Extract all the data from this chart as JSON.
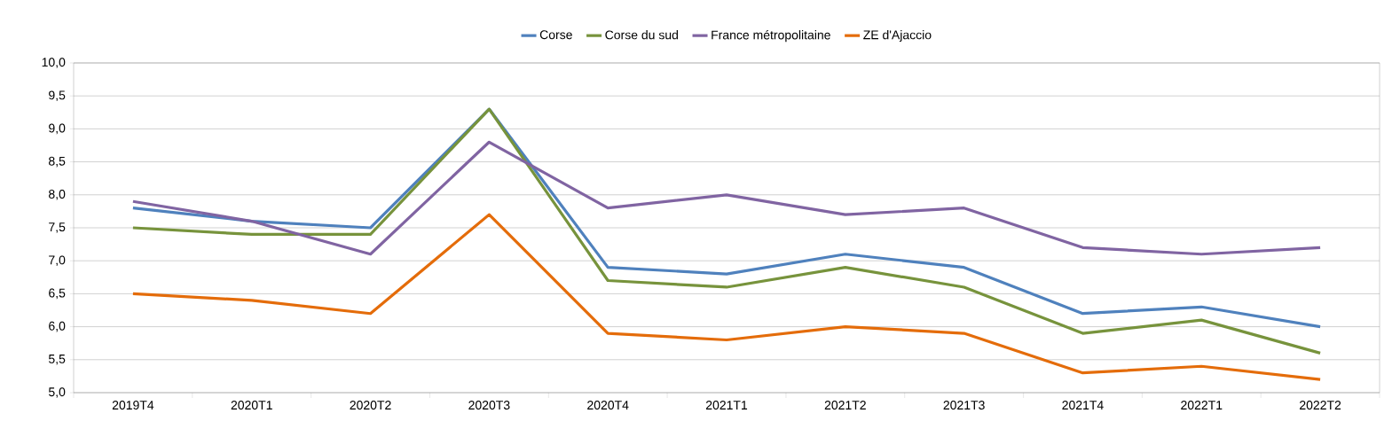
{
  "chart_data": {
    "type": "line",
    "categories": [
      "2019T4",
      "2020T1",
      "2020T2",
      "2020T3",
      "2020T4",
      "2021T1",
      "2021T2",
      "2021T3",
      "2021T4",
      "2022T1",
      "2022T2"
    ],
    "series": [
      {
        "name": "Corse",
        "color": "#4f81bd",
        "values": [
          7.8,
          7.6,
          7.5,
          9.3,
          6.9,
          6.8,
          7.1,
          6.9,
          6.2,
          6.3,
          6.0
        ]
      },
      {
        "name": "Corse du sud",
        "color": "#77933c",
        "values": [
          7.5,
          7.4,
          7.4,
          9.3,
          6.7,
          6.6,
          6.9,
          6.6,
          5.9,
          6.1,
          5.6
        ]
      },
      {
        "name": "France métropolitaine",
        "color": "#8064a2",
        "values": [
          7.9,
          7.6,
          7.1,
          8.8,
          7.8,
          8.0,
          7.7,
          7.8,
          7.2,
          7.1,
          7.2
        ]
      },
      {
        "name": "ZE d'Ajaccio",
        "color": "#e46c0a",
        "values": [
          6.5,
          6.4,
          6.2,
          7.7,
          5.9,
          5.8,
          6.0,
          5.9,
          5.3,
          5.4,
          5.2
        ]
      }
    ],
    "ylim": [
      5,
      10
    ],
    "yticks": [
      {
        "value": 5,
        "label": "5,0"
      },
      {
        "value": 5.5,
        "label": "5,5"
      },
      {
        "value": 6,
        "label": "6,0"
      },
      {
        "value": 6.5,
        "label": "6,5"
      },
      {
        "value": 7,
        "label": "7,0"
      },
      {
        "value": 7.5,
        "label": "7,5"
      },
      {
        "value": 8,
        "label": "8,0"
      },
      {
        "value": 8.5,
        "label": "8,5"
      },
      {
        "value": 9,
        "label": "9,0"
      },
      {
        "value": 9.5,
        "label": "9,5"
      },
      {
        "value": 10,
        "label": "10,0"
      }
    ],
    "grid": "y",
    "legend": "top",
    "marker": "none",
    "line_style": "solid"
  }
}
